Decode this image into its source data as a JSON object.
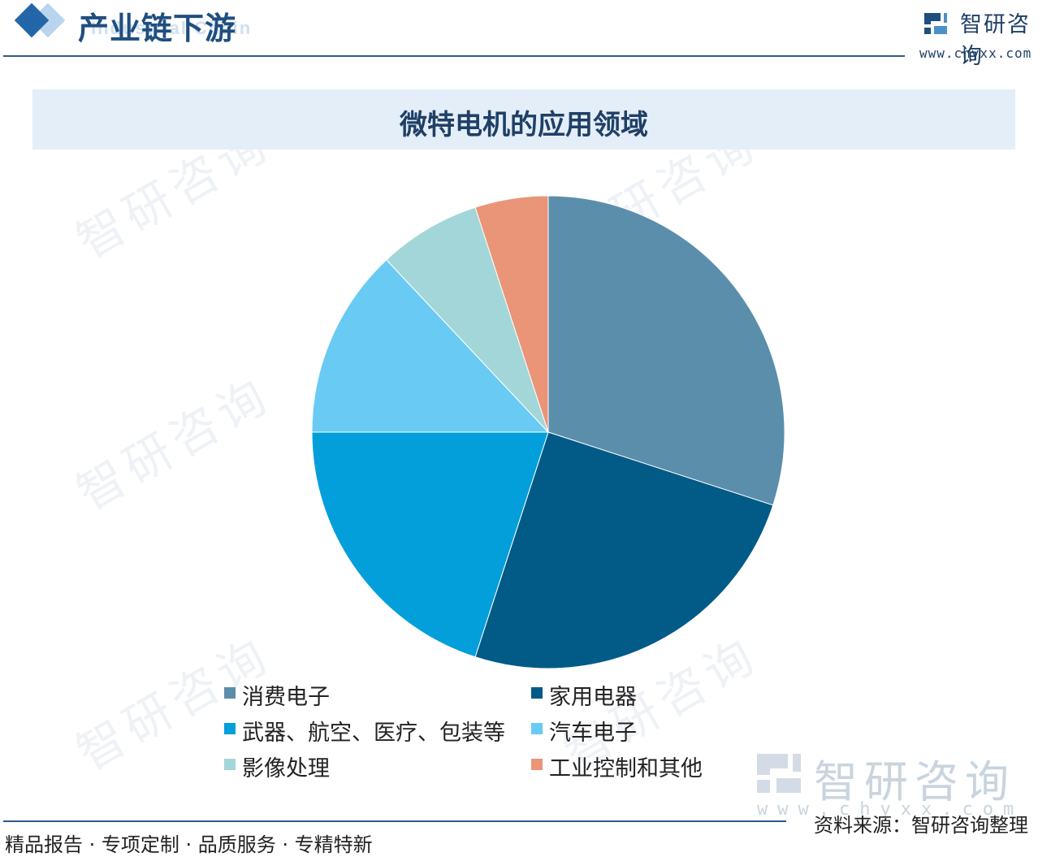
{
  "header": {
    "section_title": "产业链下游",
    "section_subtitle": "Industrial Chain",
    "brand_name": "智研咨询",
    "brand_url": "www.chyxx.com"
  },
  "watermark_text": "智研咨询",
  "chart_data": {
    "type": "pie",
    "title": "微特电机的应用领域",
    "categories": [
      "消费电子",
      "家用电器",
      "武器、航空、医疗、包装等",
      "汽车电子",
      "影像处理",
      "工业控制和其他"
    ],
    "values": [
      30,
      25,
      20,
      13,
      7,
      5
    ],
    "colors": [
      "#5b8eab",
      "#025b87",
      "#029fdb",
      "#69cbf4",
      "#a3d6d8",
      "#ea9478"
    ],
    "start_angle": "12 o'clock",
    "direction": "clockwise",
    "legend_position": "bottom"
  },
  "bottom_logo": {
    "name": "智研咨询",
    "url": "www.chyxx.com"
  },
  "source": "资料来源：智研咨询整理",
  "footer_tagline": "精品报告 · 专项定制 · 品质服务 · 专精特新"
}
